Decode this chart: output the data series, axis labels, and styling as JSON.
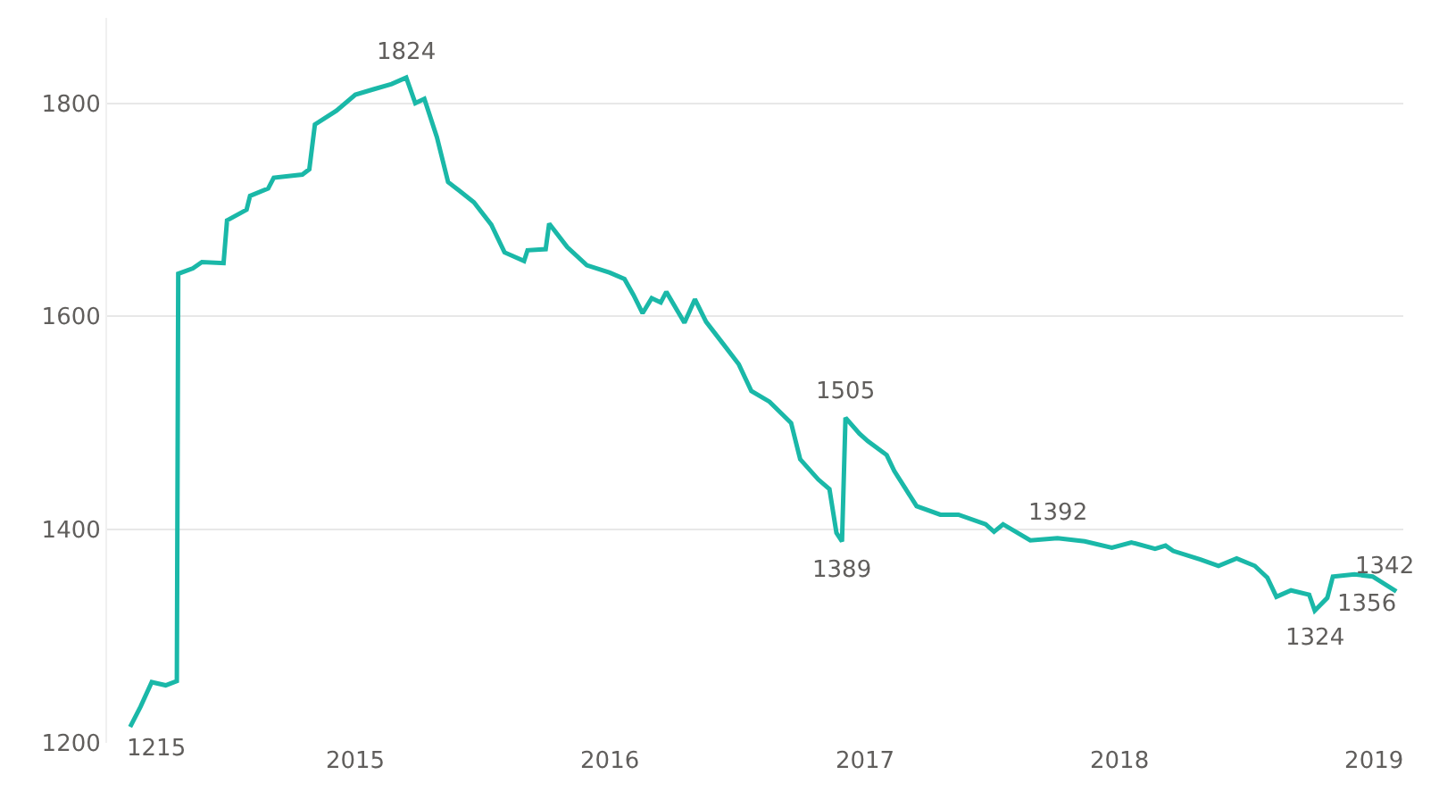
{
  "chart_data": {
    "type": "line",
    "x": [
      "2014-02-12",
      "2014-02-27",
      "2014-03-15",
      "2014-04-04",
      "2014-04-20",
      "2014-04-22",
      "2014-05-13",
      "2014-05-26",
      "2014-06-26",
      "2014-07-01",
      "2014-07-29",
      "2014-08-03",
      "2014-08-29",
      "2014-09-06",
      "2014-10-17",
      "2014-10-27",
      "2014-11-04",
      "2014-12-05",
      "2015-01-01",
      "2015-01-27",
      "2015-02-22",
      "2015-03-15",
      "2015-03-28",
      "2015-04-10",
      "2015-04-28",
      "2015-05-14",
      "2015-05-30",
      "2015-06-20",
      "2015-07-15",
      "2015-08-03",
      "2015-08-31",
      "2015-09-05",
      "2015-10-01",
      "2015-10-06",
      "2015-11-01",
      "2015-11-29",
      "2016-01-01",
      "2016-01-22",
      "2016-02-04",
      "2016-02-17",
      "2016-03-01",
      "2016-03-14",
      "2016-03-22",
      "2016-04-17",
      "2016-05-02",
      "2016-05-18",
      "2016-06-13",
      "2016-07-04",
      "2016-07-22",
      "2016-08-17",
      "2016-09-17",
      "2016-09-30",
      "2016-10-26",
      "2016-11-11",
      "2016-11-21",
      "2016-11-29",
      "2016-12-04",
      "2016-12-24",
      "2017-01-05",
      "2017-02-01",
      "2017-02-12",
      "2017-03-16",
      "2017-04-19",
      "2017-05-15",
      "2017-06-23",
      "2017-07-05",
      "2017-07-18",
      "2017-08-26",
      "2017-10-04",
      "2017-11-12",
      "2017-12-21",
      "2018-01-18",
      "2018-02-21",
      "2018-03-08",
      "2018-03-19",
      "2018-04-27",
      "2018-05-23",
      "2018-06-18",
      "2018-07-14",
      "2018-08-01",
      "2018-08-14",
      "2018-09-04",
      "2018-09-30",
      "2018-10-08",
      "2018-10-26",
      "2018-11-03",
      "2018-12-04",
      "2018-12-30",
      "2019-02-02"
    ],
    "series": [
      {
        "color": "#1ab8a8",
        "values": [
          1215,
          1234,
          1257,
          1254,
          1258,
          1640,
          1645,
          1651,
          1650,
          1690,
          1700,
          1713,
          1720,
          1730,
          1733,
          1738,
          1780,
          1793,
          1808,
          1813,
          1818,
          1824,
          1800,
          1804,
          1768,
          1726,
          1718,
          1707,
          1686,
          1660,
          1652,
          1662,
          1663,
          1687,
          1665,
          1648,
          1641,
          1635,
          1620,
          1603,
          1617,
          1613,
          1623,
          1594,
          1616,
          1595,
          1573,
          1555,
          1530,
          1520,
          1500,
          1466,
          1447,
          1438,
          1397,
          1389,
          1505,
          1490,
          1483,
          1470,
          1455,
          1422,
          1414,
          1414,
          1405,
          1398,
          1405,
          1390,
          1392,
          1389,
          1383,
          1388,
          1382,
          1385,
          1380,
          1372,
          1366,
          1373,
          1366,
          1355,
          1337,
          1343,
          1339,
          1324,
          1336,
          1356,
          1358,
          1356,
          1342
        ],
        "value_labels": [
          "1215",
          null,
          null,
          null,
          null,
          null,
          null,
          null,
          null,
          null,
          null,
          null,
          null,
          null,
          null,
          null,
          null,
          null,
          null,
          null,
          null,
          "1824",
          null,
          null,
          null,
          null,
          null,
          null,
          null,
          null,
          null,
          null,
          null,
          null,
          null,
          null,
          null,
          null,
          null,
          null,
          null,
          null,
          null,
          null,
          null,
          null,
          null,
          null,
          null,
          null,
          null,
          null,
          null,
          null,
          null,
          "1389",
          "1505",
          null,
          null,
          null,
          null,
          null,
          null,
          null,
          null,
          null,
          null,
          null,
          "1392",
          null,
          null,
          null,
          null,
          null,
          null,
          null,
          null,
          null,
          null,
          null,
          null,
          null,
          null,
          "1324",
          null,
          "1356",
          null,
          null,
          "1342"
        ]
      }
    ],
    "xlim": [
      "2014-01-10",
      "2019-02-12"
    ],
    "xticks": [
      {
        "value": "2015-01-01",
        "label": "2015"
      },
      {
        "value": "2016-01-01",
        "label": "2016"
      },
      {
        "value": "2017-01-01",
        "label": "2017"
      },
      {
        "value": "2018-01-01",
        "label": "2018"
      },
      {
        "value": "2019-01-01",
        "label": "2019"
      }
    ],
    "ylim": [
      1200,
      1880
    ],
    "yticks": [
      1200,
      1400,
      1600,
      1800
    ],
    "grid": "y",
    "marker": "none",
    "line_style": "solid"
  }
}
